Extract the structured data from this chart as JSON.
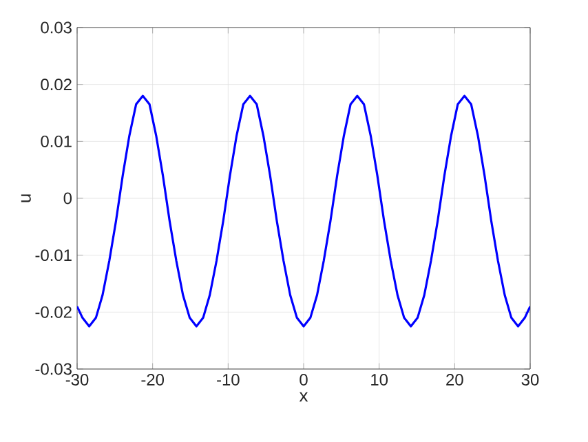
{
  "chart_data": {
    "type": "line",
    "xlabel": "x",
    "ylabel": "u",
    "x": [
      -30,
      -29.29,
      -28.4,
      -27.51,
      -26.63,
      -25.74,
      -24.85,
      -23.96,
      -23.08,
      -22.19,
      -21.3,
      -20.41,
      -19.53,
      -18.64,
      -17.75,
      -16.86,
      -15.98,
      -15.09,
      -14.2,
      -13.31,
      -12.43,
      -11.54,
      -10.65,
      -9.76,
      -8.88,
      -7.99,
      -7.1,
      -6.21,
      -5.33,
      -4.44,
      -3.55,
      -2.66,
      -1.78,
      -0.89,
      0,
      0.89,
      1.78,
      2.66,
      3.55,
      4.44,
      5.33,
      6.21,
      7.1,
      7.99,
      8.88,
      9.76,
      10.65,
      11.54,
      12.43,
      13.31,
      14.2,
      15.09,
      15.98,
      16.86,
      17.75,
      18.64,
      19.53,
      20.41,
      21.3,
      22.19,
      23.08,
      23.96,
      24.85,
      25.74,
      26.63,
      27.51,
      28.4,
      29.29,
      30
    ],
    "series": [
      {
        "color": "#0000ff",
        "values": [
          -0.019,
          -0.021,
          -0.0225,
          -0.021,
          -0.017,
          -0.011,
          -0.004,
          0.004,
          0.011,
          0.0165,
          0.018,
          0.0165,
          0.011,
          0.004,
          -0.004,
          -0.011,
          -0.017,
          -0.021,
          -0.0225,
          -0.021,
          -0.017,
          -0.011,
          -0.004,
          0.004,
          0.011,
          0.0165,
          0.018,
          0.0165,
          0.011,
          0.004,
          -0.004,
          -0.011,
          -0.017,
          -0.021,
          -0.0225,
          -0.021,
          -0.017,
          -0.011,
          -0.004,
          0.004,
          0.011,
          0.0165,
          0.018,
          0.0165,
          0.011,
          0.004,
          -0.004,
          -0.011,
          -0.017,
          -0.021,
          -0.0225,
          -0.021,
          -0.017,
          -0.011,
          -0.004,
          0.004,
          0.011,
          0.0165,
          0.018,
          0.0165,
          0.011,
          0.004,
          -0.004,
          -0.011,
          -0.017,
          -0.021,
          -0.0225,
          -0.021,
          -0.019
        ]
      }
    ],
    "xlim": [
      -30,
      30
    ],
    "ylim": [
      -0.03,
      0.03
    ],
    "xticks": [
      -30,
      -20,
      -10,
      0,
      10,
      20,
      30
    ],
    "yticks": [
      -0.03,
      -0.02,
      -0.01,
      0,
      0.01,
      0.02,
      0.03
    ],
    "grid": true,
    "marker": "none",
    "line_style": "solid"
  }
}
